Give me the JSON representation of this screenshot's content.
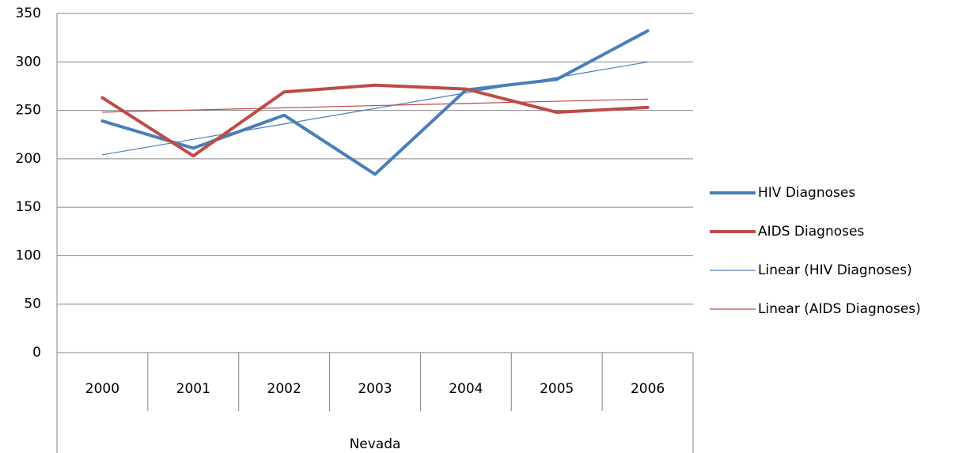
{
  "chart_data": {
    "type": "line",
    "categories": [
      "2000",
      "2001",
      "2002",
      "2003",
      "2004",
      "2005",
      "2006"
    ],
    "group_label": "Nevada",
    "series": [
      {
        "name": "HIV Diagnoses",
        "color": "#4a7ebb",
        "width": 4,
        "values": [
          239,
          211,
          245,
          184,
          271,
          282,
          332
        ]
      },
      {
        "name": "AIDS Diagnoses",
        "color": "#be4b48",
        "width": 4,
        "values": [
          263,
          203,
          269,
          276,
          272,
          248,
          253
        ]
      },
      {
        "name": "Linear (HIV Diagnoses)",
        "color": "#4a7ebb",
        "width": 1.2,
        "values": [
          204.1,
          220.1,
          236.0,
          252.0,
          268.0,
          283.9,
          299.9
        ]
      },
      {
        "name": "Linear (AIDS Diagnoses)",
        "color": "#be4b48",
        "width": 1.2,
        "values": [
          248.1,
          250.4,
          252.6,
          254.9,
          257.1,
          259.4,
          261.6
        ]
      }
    ],
    "ylim": [
      0,
      350
    ],
    "yticks": [
      0,
      50,
      100,
      150,
      200,
      250,
      300,
      350
    ],
    "grid": true,
    "legend": "right"
  }
}
